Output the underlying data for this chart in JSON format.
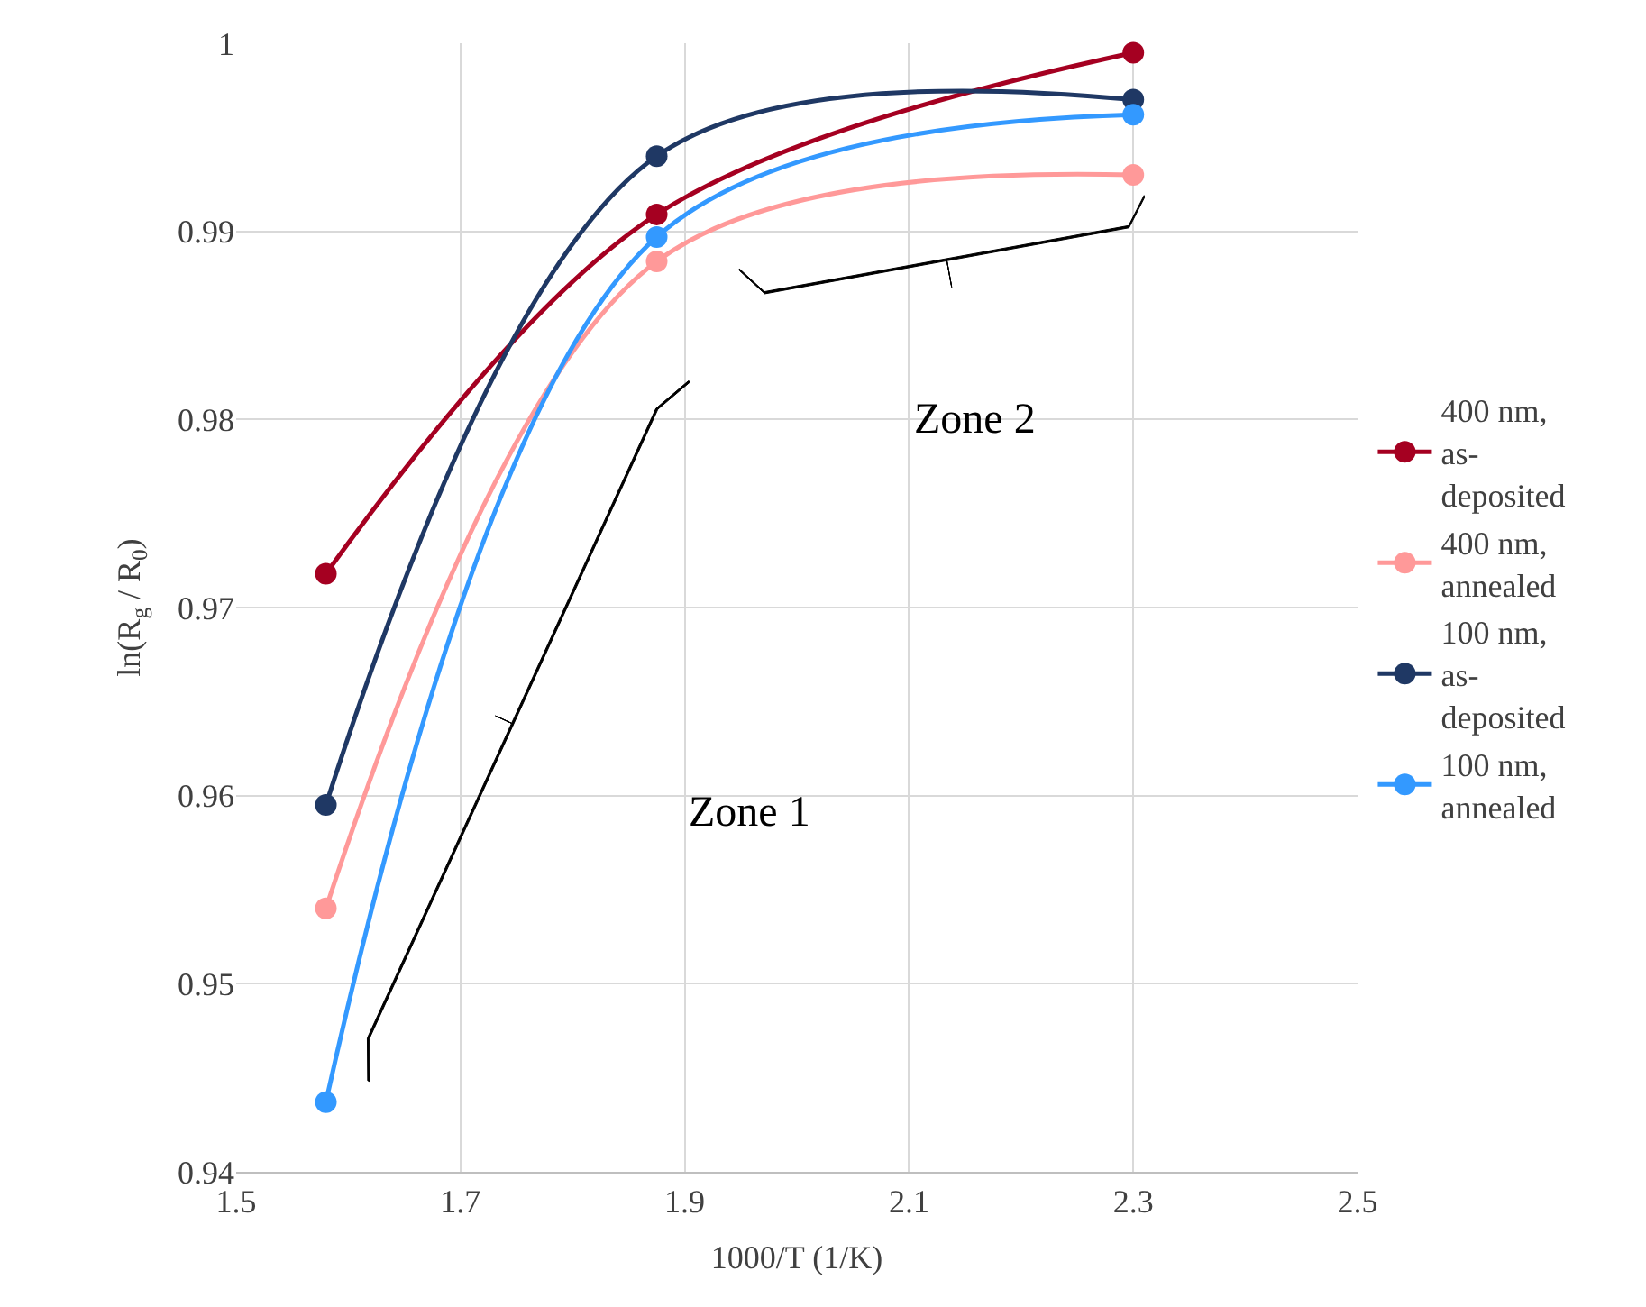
{
  "chart_data": {
    "type": "line",
    "xlabel": "1000/T (1/K)",
    "ylabel": "ln(R$_{g}$ / R$_{0}$)",
    "x": [
      1.58,
      1.875,
      2.3
    ],
    "series": [
      {
        "name": "400 nm, as-deposited",
        "color": "#a50021",
        "values": [
          0.9718,
          0.9909,
          0.9995
        ]
      },
      {
        "name": "400 nm, annealed",
        "color": "#ff9999",
        "values": [
          0.954,
          0.9884,
          0.993
        ]
      },
      {
        "name": "100 nm, as-deposited",
        "color": "#1f3864",
        "values": [
          0.9595,
          0.994,
          0.997
        ]
      },
      {
        "name": "100 nm, annealed",
        "color": "#3399ff",
        "values": [
          0.9437,
          0.9897,
          0.9962
        ]
      }
    ],
    "xlim": [
      1.5,
      2.5
    ],
    "xticks": [
      1.5,
      1.7,
      1.9,
      2.1,
      2.3,
      2.5
    ],
    "ylim": [
      0.94,
      1.0
    ],
    "yticks": [
      0.94,
      0.95,
      0.96,
      0.97,
      0.98,
      0.99,
      1
    ],
    "annotations": [
      "Zone 1",
      "Zone 2"
    ],
    "grid": true,
    "legend": "right",
    "marker": "circle",
    "line_style": "solid"
  }
}
